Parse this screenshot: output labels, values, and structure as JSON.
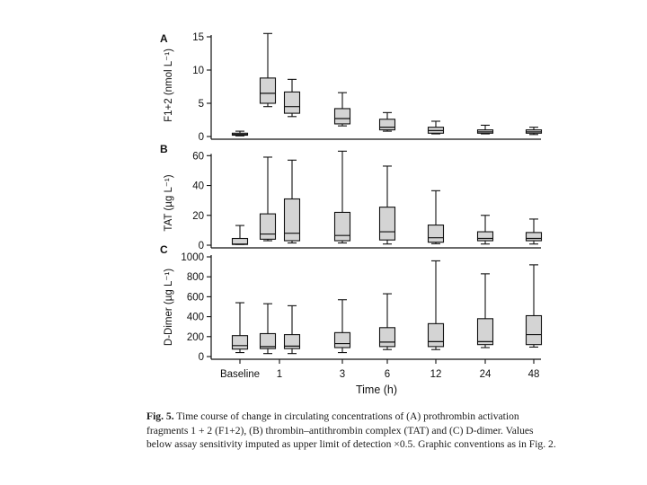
{
  "chart_data": [
    {
      "type": "box",
      "panel": "A",
      "ylabel": "F1+2 (nmol L⁻¹)",
      "ylim": [
        0,
        15
      ],
      "yticks": [
        0,
        5,
        10,
        15
      ],
      "boxes": [
        {
          "group": "Baseline",
          "min": 0.1,
          "q1": 0.2,
          "median": 0.3,
          "q3": 0.5,
          "max": 0.8
        },
        {
          "group": "1a",
          "min": 4.5,
          "q1": 5.0,
          "median": 6.5,
          "q3": 8.8,
          "max": 15.5
        },
        {
          "group": "1b",
          "min": 3.0,
          "q1": 3.5,
          "median": 4.5,
          "q3": 6.7,
          "max": 8.6
        },
        {
          "group": "3",
          "min": 1.6,
          "q1": 1.9,
          "median": 2.7,
          "q3": 4.2,
          "max": 6.6
        },
        {
          "group": "6",
          "min": 0.8,
          "q1": 1.0,
          "median": 1.4,
          "q3": 2.6,
          "max": 3.6
        },
        {
          "group": "12",
          "min": 0.4,
          "q1": 0.5,
          "median": 0.9,
          "q3": 1.4,
          "max": 2.3
        },
        {
          "group": "24",
          "min": 0.4,
          "q1": 0.5,
          "median": 0.7,
          "q3": 1.0,
          "max": 1.7
        },
        {
          "group": "48",
          "min": 0.3,
          "q1": 0.5,
          "median": 0.7,
          "q3": 1.0,
          "max": 1.4
        }
      ]
    },
    {
      "type": "box",
      "panel": "B",
      "ylabel": "TAT (µg L⁻¹)",
      "ylim": [
        0,
        65
      ],
      "yticks": [
        0,
        20,
        40,
        60
      ],
      "boxes": [
        {
          "group": "Baseline",
          "min": 0.5,
          "q1": 0.5,
          "median": 0.8,
          "q3": 4.5,
          "max": 13.2
        },
        {
          "group": "1a",
          "min": 3.0,
          "q1": 4.0,
          "median": 7.5,
          "q3": 21.0,
          "max": 59.0
        },
        {
          "group": "1b",
          "min": 1.5,
          "q1": 3.0,
          "median": 8.0,
          "q3": 31.0,
          "max": 57.0
        },
        {
          "group": "3",
          "min": 1.5,
          "q1": 3.0,
          "median": 6.5,
          "q3": 22.0,
          "max": 63.0
        },
        {
          "group": "6",
          "min": 0.8,
          "q1": 3.5,
          "median": 9.0,
          "q3": 25.5,
          "max": 53.0
        },
        {
          "group": "12",
          "min": 1.0,
          "q1": 2.0,
          "median": 5.0,
          "q3": 13.5,
          "max": 36.5
        },
        {
          "group": "24",
          "min": 0.8,
          "q1": 3.0,
          "median": 4.5,
          "q3": 9.0,
          "max": 20.0
        },
        {
          "group": "48",
          "min": 0.8,
          "q1": 3.0,
          "median": 4.5,
          "q3": 8.5,
          "max": 17.5
        }
      ]
    },
    {
      "type": "box",
      "panel": "C",
      "ylabel": "D-Dimer (µg L⁻¹)",
      "ylim": [
        0,
        1000
      ],
      "yticks": [
        0,
        200,
        400,
        600,
        800,
        1000
      ],
      "xlabel": "Time (h)",
      "xticks": [
        "Baseline",
        "1",
        "3",
        "6",
        "12",
        "24",
        "48"
      ],
      "boxes": [
        {
          "group": "Baseline",
          "min": 40,
          "q1": 75,
          "median": 110,
          "q3": 210,
          "max": 540
        },
        {
          "group": "1a",
          "min": 30,
          "q1": 80,
          "median": 100,
          "q3": 230,
          "max": 530
        },
        {
          "group": "1b",
          "min": 30,
          "q1": 80,
          "median": 105,
          "q3": 220,
          "max": 510
        },
        {
          "group": "3",
          "min": 40,
          "q1": 90,
          "median": 130,
          "q3": 240,
          "max": 570
        },
        {
          "group": "6",
          "min": 70,
          "q1": 100,
          "median": 145,
          "q3": 290,
          "max": 630
        },
        {
          "group": "12",
          "min": 70,
          "q1": 100,
          "median": 150,
          "q3": 330,
          "max": 960
        },
        {
          "group": "24",
          "min": 90,
          "q1": 120,
          "median": 150,
          "q3": 380,
          "max": 830
        },
        {
          "group": "48",
          "min": 95,
          "q1": 120,
          "median": 220,
          "q3": 410,
          "max": 920
        }
      ]
    }
  ],
  "caption": {
    "fig_label": "Fig. 5.",
    "text": "Time course of change in circulating concentrations of (A) prothrombin activation fragments 1 + 2 (F1+2), (B) thrombin–antithrombin complex (TAT) and (C) D-dimer. Values below assay sensitivity imputed as upper limit of detection ×0.5. Graphic conventions as in Fig. 2."
  }
}
